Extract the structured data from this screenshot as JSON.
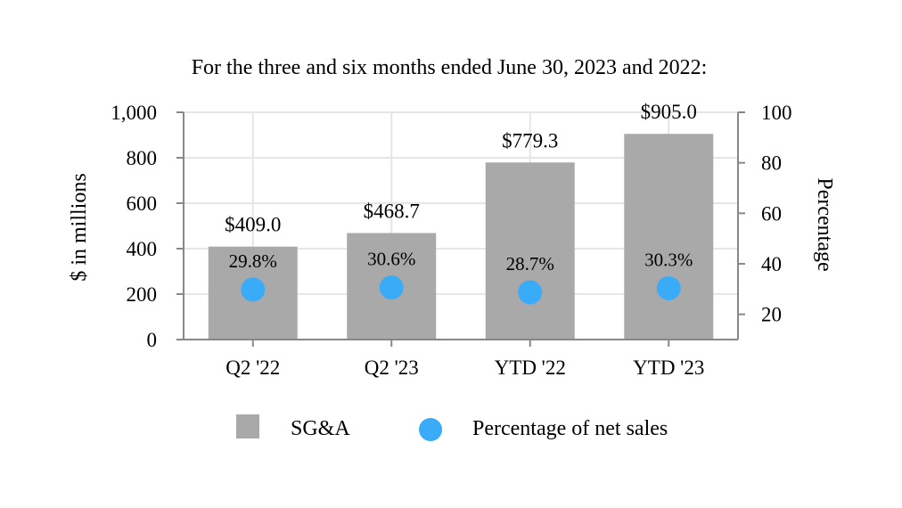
{
  "chart_data": {
    "type": "bar",
    "title": "For the three and six months ended June 30, 2023 and 2022:",
    "categories": [
      "Q2 '22",
      "Q2 '23",
      "YTD '22",
      "YTD '23"
    ],
    "series": [
      {
        "name": "SG&A",
        "kind": "bar",
        "axis": "left",
        "values": [
          409.0,
          468.7,
          779.3,
          905.0
        ],
        "labels": [
          "$409.0",
          "$468.7",
          "$779.3",
          "$905.0"
        ]
      },
      {
        "name": "Percentage of net sales",
        "kind": "scatter",
        "axis": "right",
        "values": [
          29.8,
          30.6,
          28.7,
          30.3
        ],
        "labels": [
          "29.8%",
          "30.6%",
          "28.7%",
          "30.3%"
        ]
      }
    ],
    "ylabel": "$ in millions",
    "ylim": [
      0,
      1000
    ],
    "yticks": [
      "0",
      "200",
      "400",
      "600",
      "800",
      "1,000"
    ],
    "y2label": "Percentage",
    "y2lim": [
      10,
      100
    ],
    "y2ticks": [
      "20",
      "40",
      "60",
      "80",
      "100"
    ],
    "grid": true,
    "legend_position": "bottom"
  },
  "colors": {
    "bar": "#a9a9a9",
    "point": "#3aabf7",
    "grid": "#e6e6e6",
    "axis": "#888888"
  }
}
